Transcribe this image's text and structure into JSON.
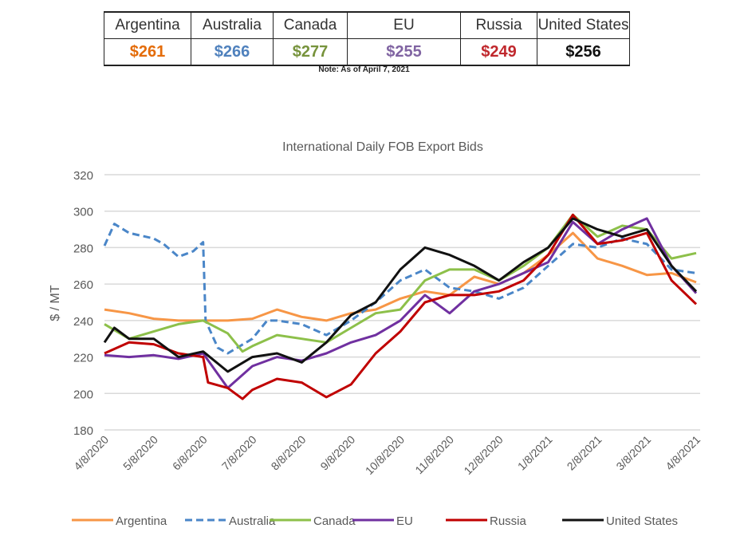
{
  "summary_table": {
    "columns": [
      {
        "name": "Argentina",
        "value": "$261",
        "color": "#E46C0A"
      },
      {
        "name": "Australia",
        "value": "$266",
        "color": "#4F81BD"
      },
      {
        "name": "Canada",
        "value": "$277",
        "color": "#77933C"
      },
      {
        "name": "EU",
        "value": "$255",
        "color": "#8064A2"
      },
      {
        "name": "Russia",
        "value": "$249",
        "color": "#C0282D"
      },
      {
        "name": "United States",
        "value": "$256",
        "color": "#111111"
      }
    ],
    "note": "Note: As of April 7, 2021"
  },
  "chart_data": {
    "type": "line",
    "title": "International Daily FOB Export Bids",
    "xlabel": "",
    "ylabel": "$ / MT",
    "ylim": [
      180,
      320
    ],
    "yticks": [
      180,
      200,
      220,
      240,
      260,
      280,
      300,
      320
    ],
    "xlim": [
      0,
      12
    ],
    "x_unit": "months since 4/8/2020",
    "xtick_labels": [
      "4/8/2020",
      "5/8/2020",
      "6/8/2020",
      "7/8/2020",
      "8/8/2020",
      "9/8/2020",
      "10/8/2020",
      "11/8/2020",
      "12/8/2020",
      "1/8/2021",
      "2/8/2021",
      "3/8/2021",
      "4/8/2021"
    ],
    "grid": true,
    "legend": "bottom",
    "series": [
      {
        "name": "Argentina",
        "color": "#F79646",
        "dashed": false,
        "x": [
          0,
          0.5,
          1,
          1.5,
          2,
          2.5,
          3,
          3.5,
          4,
          4.5,
          5,
          5.5,
          6,
          6.5,
          7,
          7.5,
          8,
          8.5,
          9,
          9.5,
          10,
          10.5,
          11,
          11.5,
          12
        ],
        "y": [
          246,
          244,
          241,
          240,
          240,
          240,
          241,
          246,
          242,
          240,
          244,
          246,
          252,
          256,
          254,
          264,
          260,
          266,
          276,
          288,
          274,
          270,
          265,
          266,
          261
        ]
      },
      {
        "name": "Australia",
        "color": "#4A86C8",
        "dashed": true,
        "x": [
          0,
          0.2,
          0.5,
          1,
          1.2,
          1.5,
          1.8,
          2,
          2.05,
          2.3,
          2.5,
          3,
          3.3,
          3.5,
          4,
          4.5,
          5,
          5.5,
          6,
          6.5,
          7,
          7.5,
          8,
          8.5,
          9,
          9.5,
          10,
          10.5,
          11,
          11.5,
          12
        ],
        "y": [
          281,
          293,
          288,
          285,
          282,
          275,
          278,
          283,
          240,
          225,
          222,
          230,
          240,
          240,
          238,
          232,
          240,
          250,
          262,
          268,
          258,
          256,
          252,
          258,
          270,
          282,
          280,
          285,
          282,
          268,
          266
        ]
      },
      {
        "name": "Canada",
        "color": "#8DC04A",
        "dashed": false,
        "x": [
          0,
          0.5,
          1,
          1.5,
          2,
          2.5,
          2.8,
          3,
          3.5,
          4,
          4.5,
          5,
          5.5,
          6,
          6.5,
          7,
          7.5,
          8,
          8.5,
          9,
          9.5,
          10,
          10.5,
          11,
          11.5,
          12
        ],
        "y": [
          238,
          230,
          234,
          238,
          240,
          233,
          223,
          226,
          232,
          230,
          228,
          236,
          244,
          246,
          262,
          268,
          268,
          262,
          270,
          280,
          298,
          286,
          292,
          290,
          274,
          277
        ]
      },
      {
        "name": "EU",
        "color": "#7030A0",
        "dashed": false,
        "x": [
          0,
          0.5,
          1,
          1.5,
          2,
          2.5,
          3,
          3.5,
          4,
          4.5,
          5,
          5.5,
          6,
          6.5,
          7,
          7.5,
          8,
          8.5,
          9,
          9.5,
          10,
          10.5,
          11,
          11.5,
          12
        ],
        "y": [
          221,
          220,
          221,
          219,
          222,
          203,
          215,
          220,
          218,
          222,
          228,
          232,
          240,
          254,
          244,
          256,
          260,
          266,
          272,
          294,
          282,
          290,
          296,
          270,
          255
        ]
      },
      {
        "name": "Russia",
        "color": "#C00000",
        "dashed": false,
        "x": [
          0,
          0.5,
          1,
          1.5,
          2,
          2.1,
          2.5,
          2.8,
          3,
          3.5,
          4,
          4.5,
          5,
          5.5,
          6,
          6.5,
          7,
          7.5,
          8,
          8.5,
          9,
          9.5,
          10,
          10.5,
          11,
          11.5,
          12
        ],
        "y": [
          222,
          228,
          227,
          222,
          220,
          206,
          203,
          197,
          202,
          208,
          206,
          198,
          205,
          222,
          234,
          250,
          254,
          254,
          256,
          262,
          276,
          298,
          282,
          284,
          288,
          262,
          249
        ]
      },
      {
        "name": "United States",
        "color": "#111111",
        "dashed": false,
        "x": [
          0,
          0.2,
          0.5,
          1,
          1.5,
          2,
          2.5,
          3,
          3.5,
          4,
          4.5,
          5,
          5.5,
          6,
          6.5,
          7,
          7.5,
          8,
          8.5,
          9,
          9.5,
          10,
          10.5,
          11,
          11.5,
          12
        ],
        "y": [
          228,
          236,
          230,
          230,
          220,
          223,
          212,
          220,
          222,
          217,
          228,
          243,
          250,
          268,
          280,
          276,
          270,
          262,
          272,
          280,
          296,
          290,
          286,
          290,
          270,
          256
        ]
      }
    ]
  }
}
